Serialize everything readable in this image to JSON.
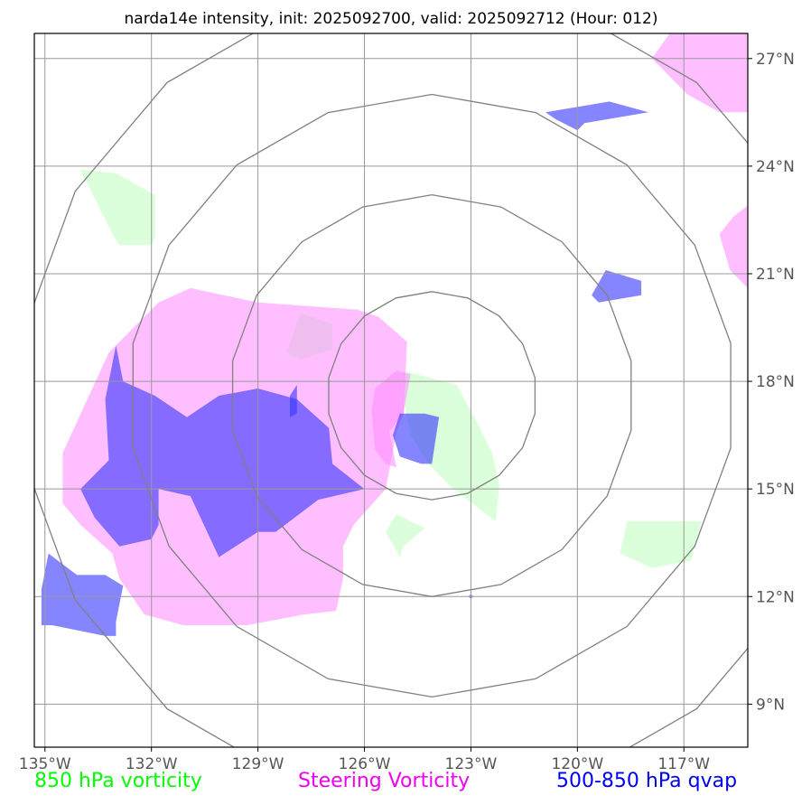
{
  "chart_data": {
    "type": "map",
    "title": "narda14e intensity, init: 2025092700, valid: 2025092712 (Hour: 012)",
    "x_range": [
      -135.3,
      -115.2
    ],
    "y_range": [
      7.8,
      27.7
    ],
    "x_ticks": [
      -135,
      -132,
      -129,
      -126,
      -123,
      -120,
      -117
    ],
    "y_ticks": [
      9,
      12,
      15,
      18,
      21,
      24,
      27
    ],
    "x_tick_labels": [
      "135°W",
      "132°W",
      "129°W",
      "126°W",
      "123°W",
      "120°W",
      "117°W"
    ],
    "y_tick_labels": [
      "9°N",
      "12°N",
      "15°N",
      "18°N",
      "21°N",
      "24°N",
      "27°N"
    ],
    "range_rings": {
      "center_lon": -124.1,
      "center_lat": 17.6,
      "radii_deg": [
        2.9,
        5.6,
        8.4,
        11.4
      ],
      "color": "#808080"
    },
    "legend": [
      {
        "label": "850 hPa vorticity",
        "color": "#00ff00"
      },
      {
        "label": "Steering Vorticity",
        "color": "#ee00ee"
      },
      {
        "label": "500-850 hPa qvap",
        "color": "#0000ee"
      }
    ],
    "layers": [
      {
        "name": "850 hPa vorticity",
        "color": "#ccffcc",
        "opacity": 0.7,
        "polygons": [
          [
            [
              -134.0,
              23.9
            ],
            [
              -133.0,
              23.8
            ],
            [
              -131.9,
              23.2
            ],
            [
              -131.9,
              22.0
            ],
            [
              -132.0,
              21.8
            ],
            [
              -132.9,
              21.8
            ],
            [
              -133.1,
              22.1
            ]
          ],
          [
            [
              -127.8,
              19.9
            ],
            [
              -126.9,
              19.6
            ],
            [
              -126.9,
              18.9
            ],
            [
              -127.8,
              18.6
            ],
            [
              -128.2,
              18.8
            ]
          ],
          [
            [
              -124.9,
              18.3
            ],
            [
              -123.4,
              17.9
            ],
            [
              -122.8,
              16.8
            ],
            [
              -122.4,
              16.0
            ],
            [
              -122.2,
              15.1
            ],
            [
              -122.3,
              14.1
            ],
            [
              -123.5,
              15.0
            ],
            [
              -124.2,
              15.7
            ],
            [
              -124.7,
              16.5
            ],
            [
              -124.9,
              17.5
            ]
          ],
          [
            [
              -125.1,
              14.3
            ],
            [
              -124.3,
              13.9
            ],
            [
              -124.9,
              13.4
            ],
            [
              -125.0,
              13.1
            ],
            [
              -125.4,
              13.8
            ]
          ],
          [
            [
              -118.6,
              14.1
            ],
            [
              -117.1,
              14.1
            ],
            [
              -116.5,
              14.1
            ],
            [
              -116.8,
              13.0
            ],
            [
              -117.9,
              12.8
            ],
            [
              -118.8,
              13.2
            ]
          ]
        ]
      },
      {
        "name": "Steering Vorticity",
        "color": "#ff88ff",
        "opacity": 0.55,
        "polygons": [
          [
            [
              -130.9,
              20.6
            ],
            [
              -129.0,
              20.2
            ],
            [
              -126.2,
              20.0
            ],
            [
              -125.6,
              19.8
            ],
            [
              -124.8,
              19.1
            ],
            [
              -124.9,
              17.1
            ],
            [
              -125.1,
              16.6
            ],
            [
              -125.4,
              15.0
            ],
            [
              -126.3,
              14.0
            ],
            [
              -126.6,
              13.4
            ],
            [
              -126.6,
              12.5
            ],
            [
              -126.8,
              11.6
            ],
            [
              -127.7,
              11.5
            ],
            [
              -129.3,
              11.2
            ],
            [
              -131.1,
              11.2
            ],
            [
              -132.2,
              11.5
            ],
            [
              -132.9,
              12.5
            ],
            [
              -133.1,
              13.2
            ],
            [
              -134.0,
              14.0
            ],
            [
              -134.5,
              14.6
            ],
            [
              -134.5,
              16.0
            ],
            [
              -133.9,
              17.3
            ],
            [
              -133.2,
              18.8
            ],
            [
              -132.6,
              19.4
            ],
            [
              -131.8,
              20.2
            ]
          ],
          [
            [
              -125.1,
              18.3
            ],
            [
              -124.7,
              18.2
            ],
            [
              -124.9,
              17.1
            ],
            [
              -125.3,
              16.6
            ],
            [
              -125.1,
              15.6
            ],
            [
              -125.4,
              15.7
            ],
            [
              -125.7,
              16.1
            ],
            [
              -125.8,
              17.2
            ],
            [
              -125.7,
              17.8
            ]
          ],
          [
            [
              -117.4,
              27.7
            ],
            [
              -115.2,
              27.7
            ],
            [
              -115.2,
              25.5
            ],
            [
              -116.0,
              25.5
            ],
            [
              -116.9,
              26.0
            ],
            [
              -117.9,
              27.0
            ]
          ],
          [
            [
              -115.2,
              22.9
            ],
            [
              -115.6,
              22.6
            ],
            [
              -116.0,
              22.1
            ],
            [
              -115.7,
              21.1
            ],
            [
              -115.2,
              20.6
            ]
          ]
        ]
      },
      {
        "name": "500-850 hPa qvap",
        "color": "#3333ff",
        "opacity": 0.6,
        "polygons": [
          [
            [
              -133.0,
              19.0
            ],
            [
              -132.8,
              18.0
            ],
            [
              -131.9,
              17.6
            ],
            [
              -131.0,
              17.0
            ],
            [
              -130.1,
              17.6
            ],
            [
              -129.0,
              17.8
            ],
            [
              -127.9,
              17.5
            ],
            [
              -127.0,
              16.7
            ],
            [
              -126.9,
              15.7
            ],
            [
              -126.0,
              15.0
            ],
            [
              -127.3,
              14.7
            ],
            [
              -128.5,
              13.8
            ],
            [
              -129.0,
              13.8
            ],
            [
              -130.1,
              13.1
            ],
            [
              -130.9,
              14.8
            ],
            [
              -131.8,
              15.0
            ],
            [
              -131.8,
              14.0
            ],
            [
              -132.0,
              13.6
            ],
            [
              -132.9,
              13.4
            ],
            [
              -133.6,
              14.2
            ],
            [
              -134.0,
              15.0
            ],
            [
              -133.2,
              15.8
            ],
            [
              -133.3,
              17.5
            ]
          ],
          [
            [
              -124.3,
              17.1
            ],
            [
              -123.9,
              17.0
            ],
            [
              -124.1,
              15.7
            ],
            [
              -124.4,
              15.7
            ],
            [
              -125.0,
              15.9
            ],
            [
              -125.2,
              16.5
            ],
            [
              -125.0,
              17.1
            ]
          ],
          [
            [
              -120.9,
              25.5
            ],
            [
              -119.1,
              25.8
            ],
            [
              -118.0,
              25.5
            ],
            [
              -119.8,
              25.2
            ],
            [
              -120.0,
              25.0
            ],
            [
              -120.6,
              25.3
            ]
          ],
          [
            [
              -119.2,
              21.1
            ],
            [
              -118.2,
              20.8
            ],
            [
              -118.2,
              20.4
            ],
            [
              -119.4,
              20.2
            ],
            [
              -119.6,
              20.4
            ]
          ],
          [
            [
              -134.9,
              13.2
            ],
            [
              -134.1,
              12.6
            ],
            [
              -133.3,
              12.6
            ],
            [
              -132.8,
              12.3
            ],
            [
              -133.0,
              11.3
            ],
            [
              -133.0,
              10.9
            ],
            [
              -133.3,
              10.9
            ],
            [
              -134.8,
              11.2
            ],
            [
              -135.1,
              11.2
            ],
            [
              -135.1,
              12.2
            ]
          ],
          [
            [
              -127.9,
              17.9
            ],
            [
              -127.9,
              17.1
            ],
            [
              -128.1,
              17.0
            ],
            [
              -128.1,
              17.6
            ]
          ],
          [
            [
              -123.0,
              12.07
            ],
            [
              -122.93,
              12.0
            ],
            [
              -123.0,
              11.93
            ],
            [
              -123.07,
              12.0
            ]
          ]
        ]
      }
    ]
  }
}
